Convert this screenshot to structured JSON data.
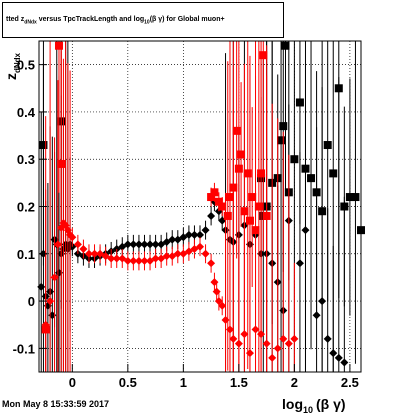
{
  "title_prefix": "tted  z",
  "title_sub": "dNdx",
  "title_mid": " versus TpcTrackLength and log",
  "title_sub2": "10",
  "title_rest": "(β γ) for Global muon+",
  "datestamp": "Mon May  8 15:33:59 2017",
  "colors": {
    "black_series": "#000000",
    "red_series": "#ff0000",
    "frame": "#000000",
    "grid": "#000000"
  },
  "chart_data": {
    "type": "scatter",
    "xlabel_main": "log",
    "xlabel_sub": "10",
    "xlabel_rest": "(β γ)",
    "ylabel_main": "z",
    "ylabel_sub": "dNdx",
    "xlim": [
      -0.3,
      2.6
    ],
    "ylim": [
      -0.15,
      0.55
    ],
    "grid": true,
    "x_ticks": [
      0,
      0.5,
      1,
      1.5,
      2,
      2.5
    ],
    "x_tick_labels": [
      "0",
      "0.5",
      "1",
      "1.5",
      "2",
      "2.5"
    ],
    "y_ticks": [
      -0.1,
      0,
      0.1,
      0.2,
      0.3,
      0.4,
      0.5
    ],
    "y_tick_labels": [
      "-0.1",
      "0",
      "0.1",
      "0.2",
      "0.3",
      "0.4",
      "0.5"
    ],
    "series": [
      {
        "color": "black",
        "marker": "diamond",
        "points": [
          [
            -0.28,
            0.03
          ],
          [
            -0.26,
            0.1
          ],
          [
            -0.24,
            0.01
          ],
          [
            -0.22,
            -0.01
          ],
          [
            -0.2,
            0.02
          ],
          [
            -0.18,
            -0.03
          ],
          [
            -0.16,
            0.13
          ],
          [
            -0.14,
            0.12
          ],
          [
            -0.12,
            0.06
          ],
          [
            -0.1,
            0.1
          ],
          [
            -0.08,
            0.11
          ],
          [
            -0.06,
            0.12
          ],
          [
            -0.04,
            0.11
          ],
          [
            -0.02,
            0.12
          ],
          [
            0.0,
            0.115
          ],
          [
            0.05,
            0.1
          ],
          [
            0.1,
            0.095
          ],
          [
            0.15,
            0.09
          ],
          [
            0.2,
            0.09
          ],
          [
            0.25,
            0.095
          ],
          [
            0.3,
            0.1
          ],
          [
            0.35,
            0.105
          ],
          [
            0.4,
            0.11
          ],
          [
            0.45,
            0.115
          ],
          [
            0.5,
            0.12
          ],
          [
            0.55,
            0.12
          ],
          [
            0.6,
            0.12
          ],
          [
            0.65,
            0.12
          ],
          [
            0.7,
            0.12
          ],
          [
            0.75,
            0.12
          ],
          [
            0.8,
            0.12
          ],
          [
            0.85,
            0.125
          ],
          [
            0.9,
            0.13
          ],
          [
            0.95,
            0.13
          ],
          [
            1.0,
            0.135
          ],
          [
            1.05,
            0.14
          ],
          [
            1.1,
            0.14
          ],
          [
            1.15,
            0.14
          ],
          [
            1.2,
            0.15
          ],
          [
            1.25,
            0.18
          ],
          [
            1.28,
            0.21
          ],
          [
            1.32,
            0.19
          ],
          [
            1.35,
            0.17
          ],
          [
            1.38,
            0.15
          ],
          [
            1.42,
            0.13
          ],
          [
            1.45,
            0.125
          ],
          [
            1.5,
            0.14
          ],
          [
            1.55,
            0.16
          ],
          [
            1.6,
            0.12
          ],
          [
            1.65,
            0.14
          ],
          [
            1.7,
            0.1
          ],
          [
            1.75,
            0.1
          ],
          [
            1.8,
            0.08
          ],
          [
            1.85,
            0.04
          ],
          [
            1.9,
            -0.02
          ],
          [
            1.95,
            0.17
          ],
          [
            2.05,
            0.08
          ],
          [
            2.1,
            0.15
          ],
          [
            2.2,
            -0.03
          ],
          [
            2.25,
            0.0
          ],
          [
            2.3,
            -0.08
          ],
          [
            2.35,
            -0.11
          ],
          [
            2.4,
            -0.12
          ],
          [
            2.45,
            -0.13
          ]
        ]
      },
      {
        "color": "black",
        "marker": "square",
        "points": [
          [
            -0.26,
            0.33
          ],
          [
            -0.1,
            0.38
          ],
          [
            1.8,
            0.25
          ],
          [
            1.85,
            0.26
          ],
          [
            1.88,
            0.34
          ],
          [
            1.9,
            0.37
          ],
          [
            1.92,
            0.54
          ],
          [
            1.95,
            0.23
          ],
          [
            2.0,
            0.3
          ],
          [
            2.05,
            0.42
          ],
          [
            2.1,
            0.28
          ],
          [
            2.15,
            0.26
          ],
          [
            2.2,
            0.23
          ],
          [
            2.25,
            0.19
          ],
          [
            2.3,
            0.33
          ],
          [
            2.35,
            0.27
          ],
          [
            2.4,
            0.45
          ],
          [
            2.45,
            0.2
          ],
          [
            2.5,
            0.22
          ],
          [
            2.55,
            0.22
          ],
          [
            2.6,
            0.15
          ],
          [
            1.7,
            0.26
          ],
          [
            1.72,
            0.18
          ],
          [
            1.75,
            0.2
          ]
        ]
      },
      {
        "color": "red",
        "marker": "diamond",
        "points": [
          [
            -0.24,
            -0.05
          ],
          [
            -0.2,
            0.0
          ],
          [
            -0.16,
            0.05
          ],
          [
            -0.13,
            0.12
          ],
          [
            -0.1,
            0.155
          ],
          [
            -0.08,
            0.165
          ],
          [
            -0.06,
            0.16
          ],
          [
            -0.04,
            0.15
          ],
          [
            -0.02,
            0.14
          ],
          [
            0.0,
            0.135
          ],
          [
            0.05,
            0.12
          ],
          [
            0.1,
            0.11
          ],
          [
            0.15,
            0.1
          ],
          [
            0.2,
            0.1
          ],
          [
            0.25,
            0.1
          ],
          [
            0.3,
            0.095
          ],
          [
            0.35,
            0.09
          ],
          [
            0.4,
            0.09
          ],
          [
            0.45,
            0.09
          ],
          [
            0.5,
            0.085
          ],
          [
            0.55,
            0.085
          ],
          [
            0.6,
            0.085
          ],
          [
            0.65,
            0.085
          ],
          [
            0.7,
            0.085
          ],
          [
            0.75,
            0.09
          ],
          [
            0.8,
            0.09
          ],
          [
            0.85,
            0.095
          ],
          [
            0.9,
            0.095
          ],
          [
            0.95,
            0.1
          ],
          [
            1.0,
            0.1
          ],
          [
            1.05,
            0.105
          ],
          [
            1.1,
            0.11
          ],
          [
            1.15,
            0.115
          ],
          [
            1.2,
            0.1
          ],
          [
            1.25,
            0.08
          ],
          [
            1.28,
            0.04
          ],
          [
            1.3,
            0.02
          ],
          [
            1.32,
            0.0
          ],
          [
            1.35,
            -0.01
          ],
          [
            1.38,
            -0.04
          ],
          [
            1.42,
            -0.06
          ],
          [
            1.45,
            -0.08
          ],
          [
            1.5,
            -0.09
          ],
          [
            1.55,
            -0.07
          ],
          [
            1.6,
            -0.11
          ],
          [
            1.65,
            -0.06
          ],
          [
            1.7,
            -0.07
          ],
          [
            1.75,
            -0.09
          ],
          [
            1.8,
            -0.12
          ],
          [
            1.85,
            -0.1
          ],
          [
            1.9,
            -0.08
          ],
          [
            1.95,
            -0.09
          ],
          [
            2.0,
            -0.08
          ]
        ]
      },
      {
        "color": "red",
        "marker": "square",
        "points": [
          [
            -0.24,
            -0.06
          ],
          [
            -0.12,
            0.54
          ],
          [
            -0.1,
            0.29
          ],
          [
            1.25,
            0.22
          ],
          [
            1.28,
            0.23
          ],
          [
            1.32,
            0.21
          ],
          [
            1.35,
            0.2
          ],
          [
            1.4,
            0.18
          ],
          [
            1.42,
            0.22
          ],
          [
            1.45,
            0.24
          ],
          [
            1.48,
            0.36
          ],
          [
            1.5,
            0.28
          ],
          [
            1.52,
            0.31
          ],
          [
            1.55,
            0.19
          ],
          [
            1.58,
            0.27
          ],
          [
            1.6,
            0.17
          ],
          [
            1.62,
            0.22
          ],
          [
            1.65,
            0.15
          ],
          [
            1.68,
            0.2
          ],
          [
            1.7,
            0.27
          ],
          [
            1.72,
            0.52
          ],
          [
            1.75,
            0.18
          ]
        ]
      }
    ]
  }
}
